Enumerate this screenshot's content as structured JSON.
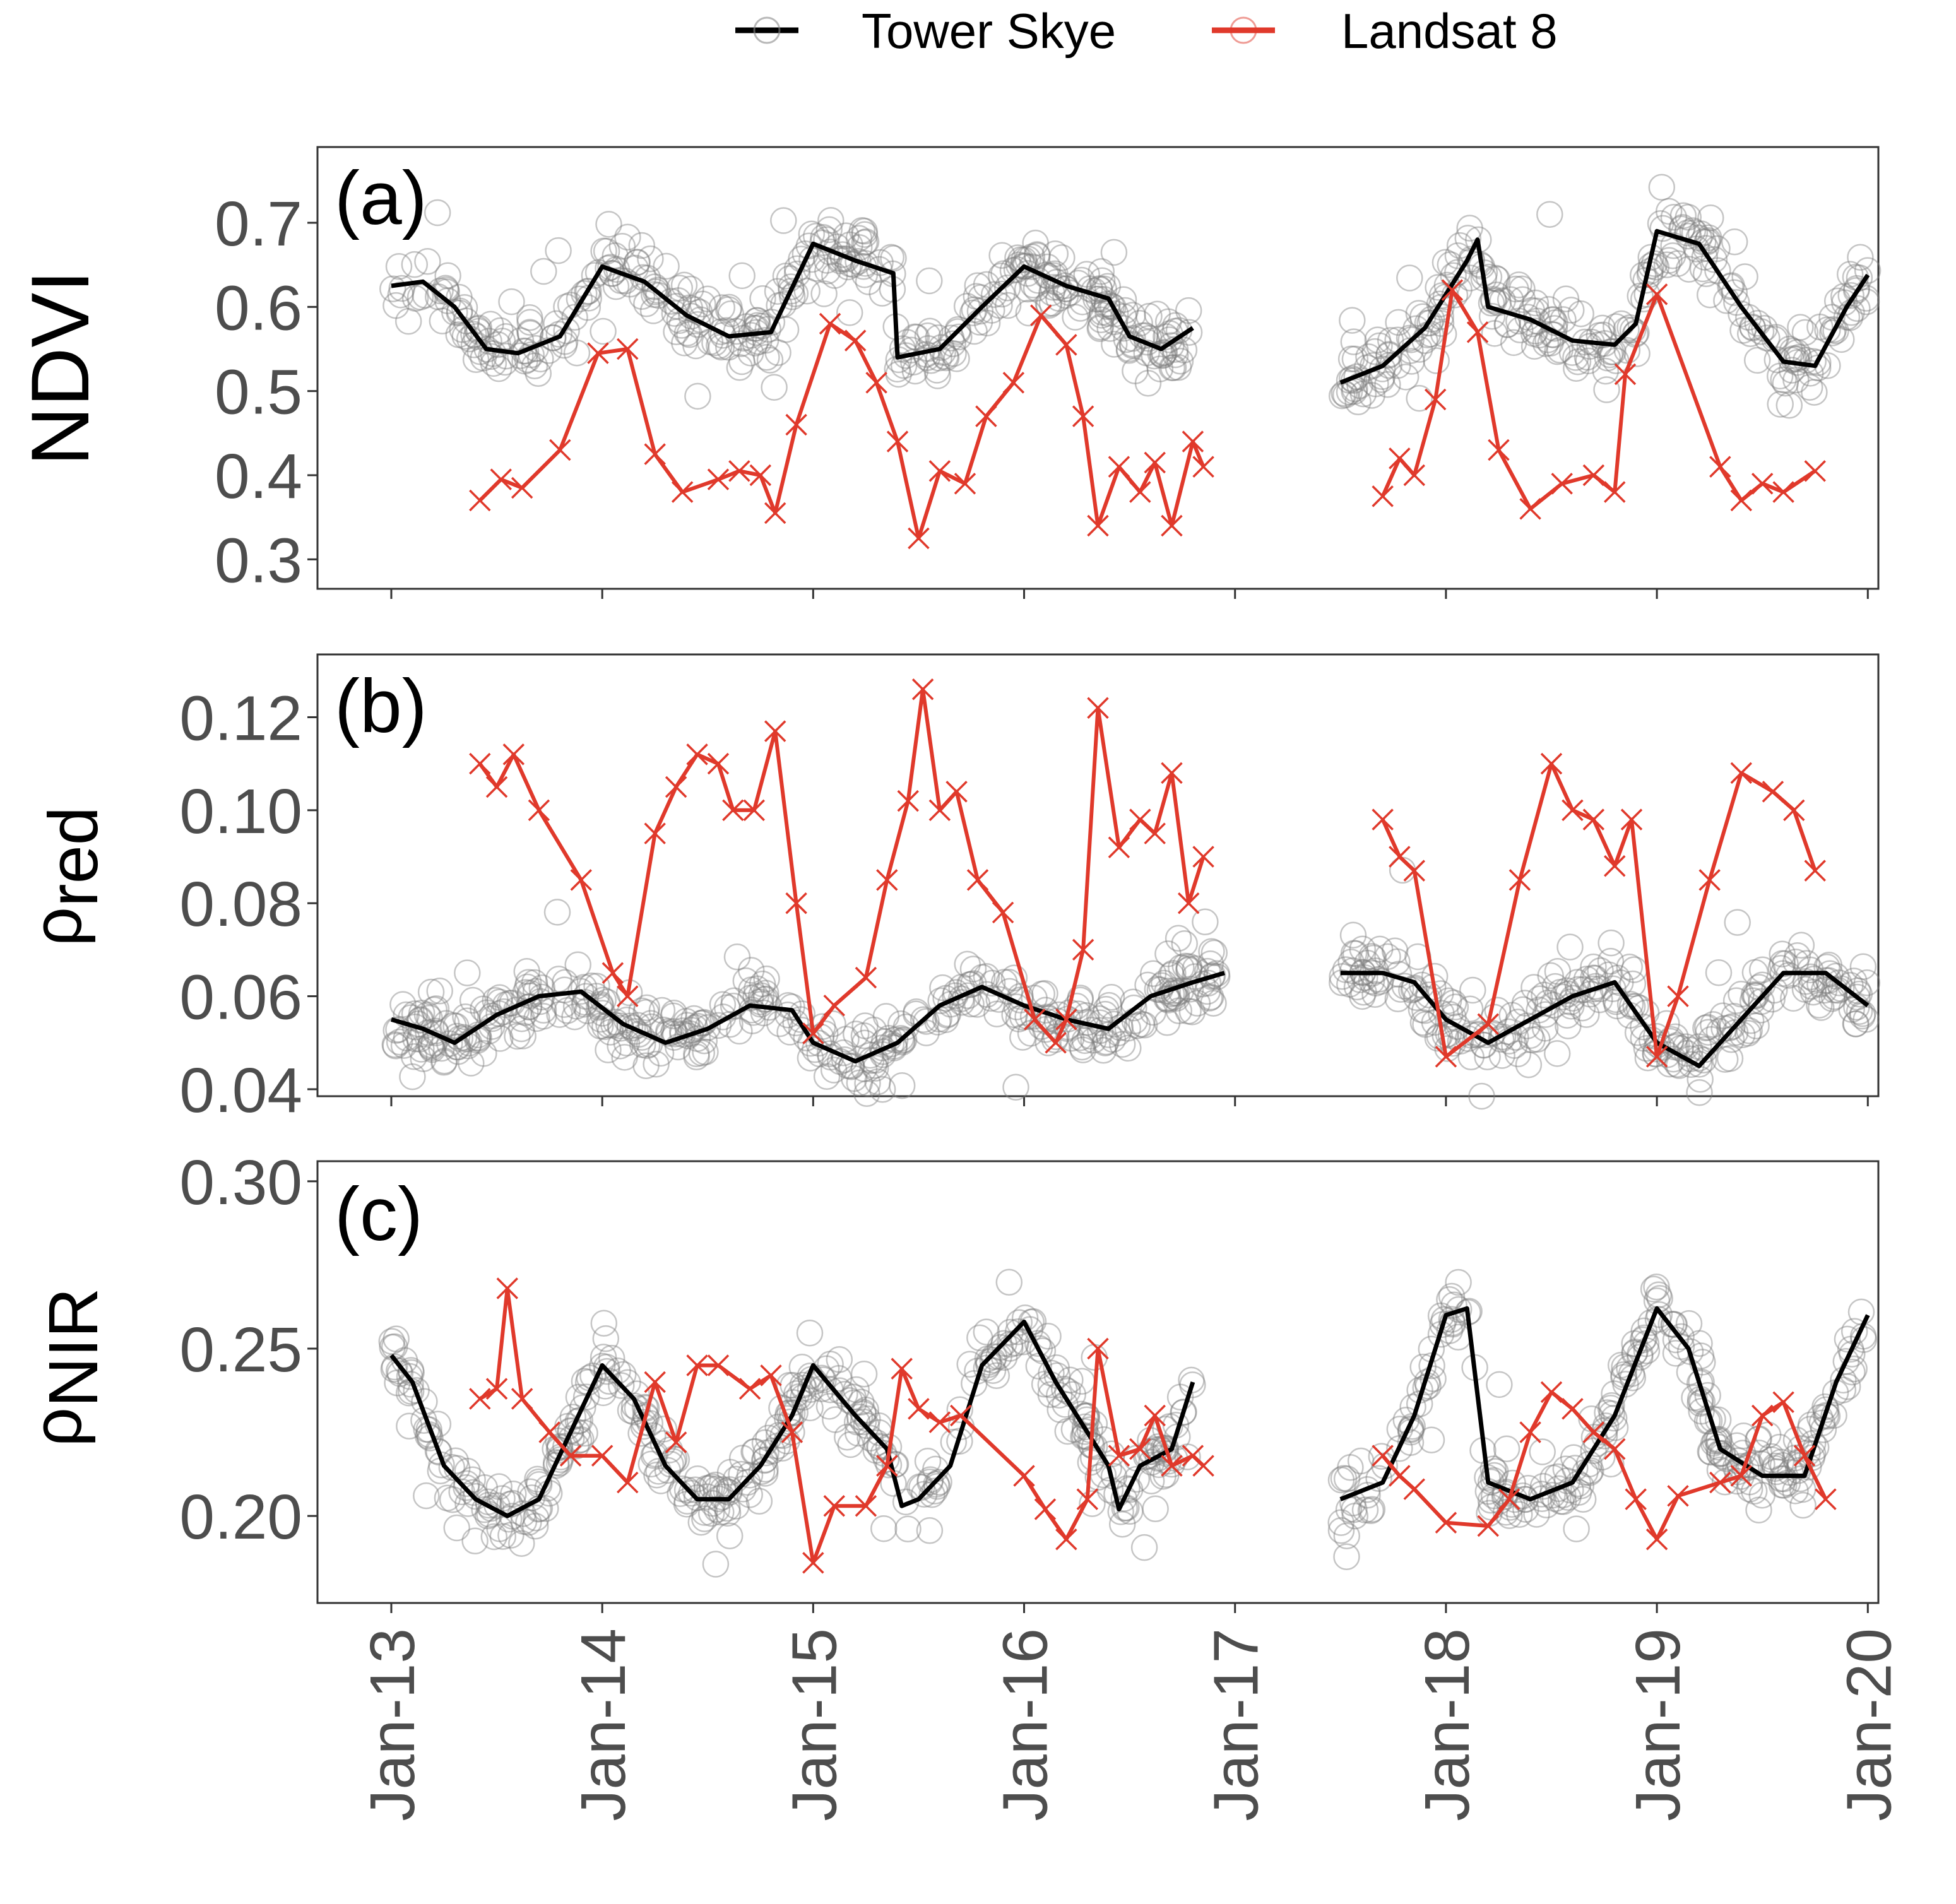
{
  "legend": {
    "tower_label": "Tower Skye",
    "landsat_label": "Landsat 8"
  },
  "colors": {
    "tower": "#000000",
    "landsat": "#e0392b",
    "scatter": "#7f7f7f",
    "axis_text": "#4d4d4d"
  },
  "chart_data": [
    {
      "type": "line",
      "panel_label": "(a)",
      "ylabel": "NDVI",
      "ylabel_main": "NDVI",
      "ylabel_sub": "",
      "ylim": [
        0.265,
        0.79
      ],
      "yticks": [
        0.3,
        0.4,
        0.5,
        0.6,
        0.7
      ],
      "ytick_labels": [
        "0.3",
        "0.4",
        "0.5",
        "0.6",
        "0.7"
      ],
      "tower_segments": [
        [
          [
            0.0,
            0.625
          ],
          [
            0.15,
            0.63
          ],
          [
            0.3,
            0.6
          ],
          [
            0.45,
            0.55
          ],
          [
            0.6,
            0.545
          ],
          [
            0.8,
            0.565
          ],
          [
            1.0,
            0.648
          ],
          [
            1.2,
            0.63
          ],
          [
            1.4,
            0.59
          ],
          [
            1.6,
            0.565
          ],
          [
            1.8,
            0.57
          ],
          [
            2.0,
            0.675
          ],
          [
            2.2,
            0.655
          ],
          [
            2.38,
            0.64
          ],
          [
            2.4,
            0.54
          ],
          [
            2.6,
            0.55
          ],
          [
            2.8,
            0.6
          ],
          [
            3.0,
            0.648
          ],
          [
            3.2,
            0.625
          ],
          [
            3.4,
            0.61
          ],
          [
            3.5,
            0.565
          ],
          [
            3.65,
            0.55
          ],
          [
            3.8,
            0.575
          ]
        ],
        [
          [
            4.5,
            0.51
          ],
          [
            4.7,
            0.53
          ],
          [
            4.9,
            0.575
          ],
          [
            5.1,
            0.655
          ],
          [
            5.15,
            0.68
          ],
          [
            5.2,
            0.6
          ],
          [
            5.4,
            0.585
          ],
          [
            5.6,
            0.56
          ],
          [
            5.8,
            0.555
          ],
          [
            5.9,
            0.58
          ],
          [
            6.0,
            0.69
          ],
          [
            6.2,
            0.675
          ],
          [
            6.4,
            0.6
          ],
          [
            6.6,
            0.535
          ],
          [
            6.75,
            0.53
          ],
          [
            6.9,
            0.6
          ],
          [
            7.0,
            0.638
          ]
        ]
      ],
      "landsat_segments": [
        [
          [
            0.42,
            0.37
          ],
          [
            0.52,
            0.395
          ],
          [
            0.62,
            0.385
          ],
          [
            0.8,
            0.43
          ],
          [
            0.98,
            0.545
          ],
          [
            1.12,
            0.55
          ],
          [
            1.25,
            0.425
          ],
          [
            1.38,
            0.38
          ],
          [
            1.55,
            0.395
          ],
          [
            1.65,
            0.405
          ],
          [
            1.75,
            0.4
          ],
          [
            1.82,
            0.355
          ],
          [
            1.92,
            0.46
          ],
          [
            2.08,
            0.58
          ],
          [
            2.2,
            0.56
          ],
          [
            2.3,
            0.51
          ],
          [
            2.4,
            0.44
          ],
          [
            2.5,
            0.325
          ],
          [
            2.6,
            0.405
          ],
          [
            2.72,
            0.39
          ],
          [
            2.82,
            0.47
          ],
          [
            2.95,
            0.51
          ],
          [
            3.08,
            0.59
          ],
          [
            3.2,
            0.555
          ],
          [
            3.28,
            0.47
          ],
          [
            3.35,
            0.34
          ],
          [
            3.45,
            0.41
          ],
          [
            3.55,
            0.38
          ],
          [
            3.62,
            0.415
          ],
          [
            3.7,
            0.34
          ],
          [
            3.8,
            0.44
          ],
          [
            3.85,
            0.41
          ]
        ],
        [
          [
            4.7,
            0.375
          ],
          [
            4.78,
            0.42
          ],
          [
            4.85,
            0.4
          ],
          [
            4.95,
            0.49
          ],
          [
            5.03,
            0.62
          ],
          [
            5.15,
            0.57
          ],
          [
            5.25,
            0.43
          ],
          [
            5.4,
            0.36
          ],
          [
            5.55,
            0.39
          ],
          [
            5.7,
            0.4
          ],
          [
            5.8,
            0.38
          ],
          [
            5.85,
            0.52
          ],
          [
            6.0,
            0.615
          ],
          [
            6.3,
            0.41
          ],
          [
            6.4,
            0.37
          ],
          [
            6.5,
            0.39
          ],
          [
            6.6,
            0.38
          ],
          [
            6.75,
            0.405
          ]
        ]
      ]
    },
    {
      "type": "line",
      "panel_label": "(b)",
      "ylabel": "ρred",
      "ylabel_main": "ρ",
      "ylabel_sub": "red",
      "ylim": [
        0.0385,
        0.1335
      ],
      "yticks": [
        0.04,
        0.06,
        0.08,
        0.1,
        0.12
      ],
      "ytick_labels": [
        "0.04",
        "0.06",
        "0.08",
        "0.10",
        "0.12"
      ],
      "tower_segments": [
        [
          [
            0.0,
            0.055
          ],
          [
            0.15,
            0.053
          ],
          [
            0.3,
            0.05
          ],
          [
            0.5,
            0.056
          ],
          [
            0.7,
            0.06
          ],
          [
            0.9,
            0.061
          ],
          [
            1.1,
            0.054
          ],
          [
            1.3,
            0.05
          ],
          [
            1.5,
            0.053
          ],
          [
            1.7,
            0.058
          ],
          [
            1.9,
            0.057
          ],
          [
            2.0,
            0.05
          ],
          [
            2.2,
            0.046
          ],
          [
            2.4,
            0.05
          ],
          [
            2.6,
            0.058
          ],
          [
            2.8,
            0.062
          ],
          [
            3.0,
            0.058
          ],
          [
            3.2,
            0.055
          ],
          [
            3.4,
            0.053
          ],
          [
            3.6,
            0.06
          ],
          [
            3.8,
            0.063
          ],
          [
            3.95,
            0.065
          ]
        ],
        [
          [
            4.5,
            0.065
          ],
          [
            4.7,
            0.065
          ],
          [
            4.85,
            0.063
          ],
          [
            5.0,
            0.055
          ],
          [
            5.2,
            0.05
          ],
          [
            5.4,
            0.055
          ],
          [
            5.6,
            0.06
          ],
          [
            5.8,
            0.063
          ],
          [
            6.0,
            0.05
          ],
          [
            6.2,
            0.045
          ],
          [
            6.4,
            0.055
          ],
          [
            6.6,
            0.065
          ],
          [
            6.8,
            0.065
          ],
          [
            7.0,
            0.058
          ]
        ]
      ],
      "landsat_segments": [
        [
          [
            0.42,
            0.11
          ],
          [
            0.5,
            0.105
          ],
          [
            0.58,
            0.112
          ],
          [
            0.7,
            0.1
          ],
          [
            0.9,
            0.085
          ],
          [
            1.05,
            0.065
          ],
          [
            1.12,
            0.06
          ],
          [
            1.25,
            0.095
          ],
          [
            1.35,
            0.105
          ],
          [
            1.45,
            0.112
          ],
          [
            1.55,
            0.11
          ],
          [
            1.62,
            0.1
          ],
          [
            1.72,
            0.1
          ],
          [
            1.82,
            0.117
          ],
          [
            1.92,
            0.08
          ],
          [
            2.0,
            0.052
          ],
          [
            2.1,
            0.058
          ],
          [
            2.25,
            0.064
          ],
          [
            2.35,
            0.085
          ],
          [
            2.45,
            0.102
          ],
          [
            2.52,
            0.126
          ],
          [
            2.6,
            0.1
          ],
          [
            2.68,
            0.104
          ],
          [
            2.78,
            0.085
          ],
          [
            2.9,
            0.078
          ],
          [
            3.05,
            0.055
          ],
          [
            3.15,
            0.05
          ],
          [
            3.2,
            0.055
          ],
          [
            3.28,
            0.07
          ],
          [
            3.35,
            0.122
          ],
          [
            3.45,
            0.092
          ],
          [
            3.55,
            0.098
          ],
          [
            3.62,
            0.095
          ],
          [
            3.7,
            0.108
          ],
          [
            3.78,
            0.08
          ],
          [
            3.85,
            0.09
          ]
        ],
        [
          [
            4.7,
            0.098
          ],
          [
            4.78,
            0.09
          ],
          [
            4.85,
            0.087
          ],
          [
            5.0,
            0.047
          ],
          [
            5.2,
            0.054
          ],
          [
            5.35,
            0.085
          ],
          [
            5.5,
            0.11
          ],
          [
            5.6,
            0.1
          ],
          [
            5.7,
            0.098
          ],
          [
            5.8,
            0.088
          ],
          [
            5.88,
            0.098
          ],
          [
            6.0,
            0.047
          ],
          [
            6.1,
            0.06
          ],
          [
            6.25,
            0.085
          ],
          [
            6.4,
            0.108
          ],
          [
            6.55,
            0.104
          ],
          [
            6.65,
            0.1
          ],
          [
            6.75,
            0.087
          ]
        ]
      ]
    },
    {
      "type": "line",
      "panel_label": "(c)",
      "ylabel": "ρNIR",
      "ylabel_main": "ρ",
      "ylabel_sub": "NIR",
      "ylim": [
        0.174,
        0.306
      ],
      "yticks": [
        0.2,
        0.25,
        0.3
      ],
      "ytick_labels": [
        "0.20",
        "0.25",
        "0.30"
      ],
      "tower_segments": [
        [
          [
            0.0,
            0.248
          ],
          [
            0.1,
            0.24
          ],
          [
            0.25,
            0.215
          ],
          [
            0.4,
            0.205
          ],
          [
            0.55,
            0.2
          ],
          [
            0.7,
            0.205
          ],
          [
            0.85,
            0.225
          ],
          [
            1.0,
            0.245
          ],
          [
            1.15,
            0.235
          ],
          [
            1.3,
            0.215
          ],
          [
            1.45,
            0.205
          ],
          [
            1.6,
            0.205
          ],
          [
            1.75,
            0.215
          ],
          [
            1.9,
            0.23
          ],
          [
            2.0,
            0.245
          ],
          [
            2.2,
            0.23
          ],
          [
            2.35,
            0.22
          ],
          [
            2.42,
            0.203
          ],
          [
            2.5,
            0.205
          ],
          [
            2.65,
            0.215
          ],
          [
            2.8,
            0.245
          ],
          [
            3.0,
            0.258
          ],
          [
            3.15,
            0.24
          ],
          [
            3.3,
            0.225
          ],
          [
            3.4,
            0.215
          ],
          [
            3.45,
            0.202
          ],
          [
            3.55,
            0.215
          ],
          [
            3.7,
            0.22
          ],
          [
            3.8,
            0.24
          ]
        ],
        [
          [
            4.5,
            0.205
          ],
          [
            4.7,
            0.21
          ],
          [
            4.85,
            0.23
          ],
          [
            5.0,
            0.26
          ],
          [
            5.1,
            0.262
          ],
          [
            5.2,
            0.21
          ],
          [
            5.4,
            0.205
          ],
          [
            5.6,
            0.21
          ],
          [
            5.8,
            0.23
          ],
          [
            6.0,
            0.262
          ],
          [
            6.15,
            0.25
          ],
          [
            6.3,
            0.22
          ],
          [
            6.5,
            0.212
          ],
          [
            6.7,
            0.212
          ],
          [
            6.85,
            0.24
          ],
          [
            7.0,
            0.26
          ]
        ]
      ],
      "landsat_segments": [
        [
          [
            0.42,
            0.235
          ],
          [
            0.5,
            0.238
          ],
          [
            0.55,
            0.268
          ],
          [
            0.62,
            0.235
          ],
          [
            0.75,
            0.225
          ],
          [
            0.85,
            0.218
          ],
          [
            1.0,
            0.218
          ],
          [
            1.12,
            0.21
          ],
          [
            1.25,
            0.24
          ],
          [
            1.35,
            0.222
          ],
          [
            1.45,
            0.245
          ],
          [
            1.55,
            0.245
          ],
          [
            1.7,
            0.238
          ],
          [
            1.8,
            0.242
          ],
          [
            1.9,
            0.225
          ],
          [
            2.0,
            0.186
          ],
          [
            2.1,
            0.203
          ],
          [
            2.25,
            0.203
          ],
          [
            2.35,
            0.215
          ],
          [
            2.42,
            0.244
          ],
          [
            2.5,
            0.232
          ],
          [
            2.6,
            0.228
          ],
          [
            2.7,
            0.23
          ],
          [
            3.0,
            0.212
          ],
          [
            3.1,
            0.202
          ],
          [
            3.2,
            0.193
          ],
          [
            3.3,
            0.205
          ],
          [
            3.35,
            0.25
          ],
          [
            3.45,
            0.218
          ],
          [
            3.55,
            0.22
          ],
          [
            3.62,
            0.23
          ],
          [
            3.7,
            0.215
          ],
          [
            3.8,
            0.218
          ],
          [
            3.85,
            0.215
          ]
        ],
        [
          [
            4.7,
            0.218
          ],
          [
            4.78,
            0.212
          ],
          [
            4.85,
            0.208
          ],
          [
            5.0,
            0.198
          ],
          [
            5.2,
            0.197
          ],
          [
            5.3,
            0.205
          ],
          [
            5.4,
            0.225
          ],
          [
            5.5,
            0.237
          ],
          [
            5.6,
            0.232
          ],
          [
            5.7,
            0.225
          ],
          [
            5.8,
            0.22
          ],
          [
            5.9,
            0.205
          ],
          [
            6.0,
            0.193
          ],
          [
            6.1,
            0.206
          ],
          [
            6.3,
            0.21
          ],
          [
            6.4,
            0.212
          ],
          [
            6.5,
            0.23
          ],
          [
            6.6,
            0.234
          ],
          [
            6.7,
            0.218
          ],
          [
            6.8,
            0.205
          ]
        ]
      ]
    }
  ],
  "x_axis": {
    "xlim": [
      -0.35,
      7.05
    ],
    "ticks": [
      0,
      1,
      2,
      3,
      4,
      5,
      6,
      7
    ],
    "tick_labels": [
      "Jan-13",
      "Jan-14",
      "Jan-15",
      "Jan-16",
      "Jan-17",
      "Jan-18",
      "Jan-19",
      "Jan-20"
    ]
  }
}
